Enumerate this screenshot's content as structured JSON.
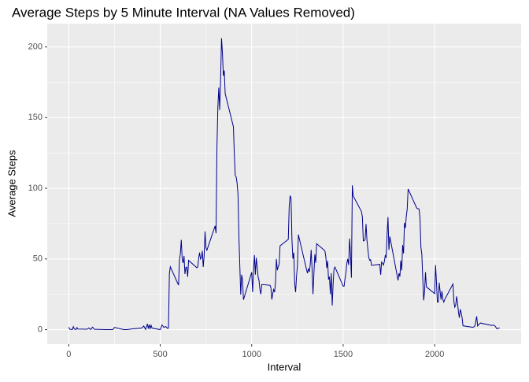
{
  "chart_data": {
    "type": "line",
    "title": "Average Steps by 5 Minute Interval (NA Values Removed)",
    "x_label": "Interval",
    "y_label": "Average Steps",
    "x": [
      0,
      5,
      10,
      15,
      20,
      25,
      30,
      40,
      45,
      50,
      100,
      110,
      120,
      130,
      140,
      150,
      200,
      220,
      240,
      250,
      300,
      320,
      340,
      400,
      410,
      420,
      430,
      435,
      440,
      445,
      450,
      455,
      500,
      505,
      510,
      520,
      530,
      540,
      545,
      550,
      555,
      600,
      605,
      610,
      615,
      620,
      625,
      630,
      635,
      640,
      645,
      650,
      655,
      700,
      705,
      710,
      715,
      720,
      725,
      730,
      735,
      740,
      745,
      750,
      755,
      800,
      805,
      810,
      815,
      820,
      825,
      830,
      835,
      840,
      845,
      850,
      855,
      900,
      905,
      910,
      915,
      920,
      925,
      930,
      935,
      940,
      945,
      950,
      955,
      1000,
      1005,
      1010,
      1015,
      1020,
      1025,
      1030,
      1035,
      1040,
      1045,
      1050,
      1055,
      1100,
      1105,
      1110,
      1115,
      1120,
      1125,
      1130,
      1135,
      1140,
      1145,
      1150,
      1155,
      1200,
      1205,
      1210,
      1215,
      1220,
      1225,
      1230,
      1235,
      1240,
      1245,
      1250,
      1255,
      1300,
      1305,
      1310,
      1315,
      1320,
      1325,
      1330,
      1335,
      1340,
      1345,
      1350,
      1355,
      1400,
      1405,
      1410,
      1415,
      1420,
      1425,
      1430,
      1435,
      1440,
      1445,
      1450,
      1455,
      1500,
      1505,
      1510,
      1515,
      1520,
      1525,
      1530,
      1535,
      1540,
      1545,
      1550,
      1555,
      1600,
      1605,
      1610,
      1615,
      1620,
      1625,
      1630,
      1635,
      1640,
      1645,
      1650,
      1655,
      1700,
      1705,
      1710,
      1715,
      1720,
      1725,
      1730,
      1735,
      1740,
      1745,
      1750,
      1755,
      1800,
      1805,
      1810,
      1815,
      1820,
      1825,
      1830,
      1835,
      1840,
      1845,
      1850,
      1855,
      1900,
      1905,
      1910,
      1915,
      1920,
      1925,
      1930,
      1935,
      1940,
      1945,
      1950,
      1955,
      2000,
      2005,
      2010,
      2015,
      2020,
      2025,
      2030,
      2035,
      2040,
      2045,
      2050,
      2055,
      2100,
      2105,
      2110,
      2115,
      2120,
      2125,
      2130,
      2135,
      2140,
      2145,
      2150,
      2155,
      2200,
      2210,
      2220,
      2230,
      2235,
      2240,
      2250,
      2300,
      2310,
      2320,
      2330,
      2340,
      2350,
      2355
    ],
    "values": [
      1.7,
      0.3,
      0.1,
      0.2,
      0.1,
      2.1,
      0.5,
      0,
      1.5,
      0.4,
      0.3,
      1.2,
      0,
      1.8,
      0.2,
      0.2,
      0,
      0,
      0,
      1.6,
      0,
      0,
      0.4,
      1.2,
      2.6,
      0.1,
      4.1,
      0.7,
      3.5,
      0.8,
      3.1,
      1.1,
      0,
      1.6,
      3.3,
      1.6,
      2.2,
      0.9,
      1.1,
      39.5,
      44.5,
      31.5,
      49.3,
      53.8,
      63.5,
      50.0,
      47.1,
      52.2,
      39.3,
      44.0,
      44.2,
      37.4,
      49.0,
      43.8,
      44.4,
      50.5,
      54.5,
      49.9,
      50.8,
      55.7,
      44.3,
      52.3,
      69.5,
      57.8,
      56.2,
      73.4,
      68.2,
      129.4,
      157.5,
      171.2,
      155.4,
      177.3,
      206.2,
      195.9,
      179.6,
      183.4,
      167.0,
      143.5,
      124.0,
      109.1,
      108.1,
      103.7,
      96.0,
      66.2,
      45.2,
      24.8,
      38.8,
      35.0,
      21.1,
      40.6,
      26.5,
      42.4,
      52.7,
      38.9,
      50.8,
      44.3,
      37.4,
      34.7,
      28.3,
      25.1,
      31.9,
      31.4,
      29.7,
      21.3,
      25.5,
      28.4,
      26.5,
      33.4,
      50.0,
      42.0,
      44.6,
      46.0,
      59.3,
      63.9,
      87.5,
      94.8,
      92.8,
      63.4,
      50.2,
      54.5,
      32.4,
      26.5,
      37.7,
      45.1,
      67.3,
      42.3,
      39.9,
      43.3,
      40.9,
      46.1,
      56.4,
      42.8,
      25.1,
      39.5,
      53.3,
      47.3,
      60.8,
      55.8,
      51.9,
      43.6,
      48.7,
      35.5,
      37.5,
      25.1,
      40.0,
      17.1,
      32.1,
      43.0,
      44.3,
      30.7,
      30.7,
      36.0,
      40.2,
      46.9,
      50.0,
      45.8,
      64.4,
      53.5,
      36.7,
      102.1,
      94.5,
      83.6,
      79.6,
      62.8,
      62.9,
      64.1,
      74.7,
      63.2,
      56.9,
      51.0,
      49.0,
      49.5,
      45.5,
      46.2,
      38.8,
      47.8,
      47.0,
      45.7,
      48.1,
      52.4,
      51.2,
      67.4,
      79.6,
      56.5,
      65.9,
      34.8,
      39.8,
      37.5,
      48.9,
      41.9,
      59.8,
      53.9,
      75.6,
      71.9,
      80.2,
      85.3,
      99.5,
      86.6,
      85.6,
      85.6,
      85.3,
      78.8,
      58.1,
      53.4,
      36.3,
      20.7,
      27.4,
      40.7,
      30.2,
      25.5,
      45.7,
      33.5,
      19.5,
      19.5,
      33.2,
      26.8,
      21.2,
      27.3,
      21.3,
      19.5,
      21.3,
      32.3,
      20.2,
      15.9,
      17.2,
      23.5,
      19.2,
      12.5,
      8.4,
      14.4,
      11.8,
      8.7,
      2.7,
      1.8,
      1.6,
      2.6,
      9.4,
      2.6,
      3.4,
      4.7,
      3.3,
      3.0,
      3.2,
      2.6,
      0.6,
      1.1,
      1.1
    ],
    "color": "#00008b",
    "xlim": [
      -117.75,
      2472.75
    ],
    "xticks": [
      0,
      500,
      1000,
      1500,
      2000
    ],
    "ylim": [
      -10.3,
      216.5
    ],
    "yticks": [
      0,
      50,
      100,
      150,
      200
    ],
    "grid": true
  }
}
